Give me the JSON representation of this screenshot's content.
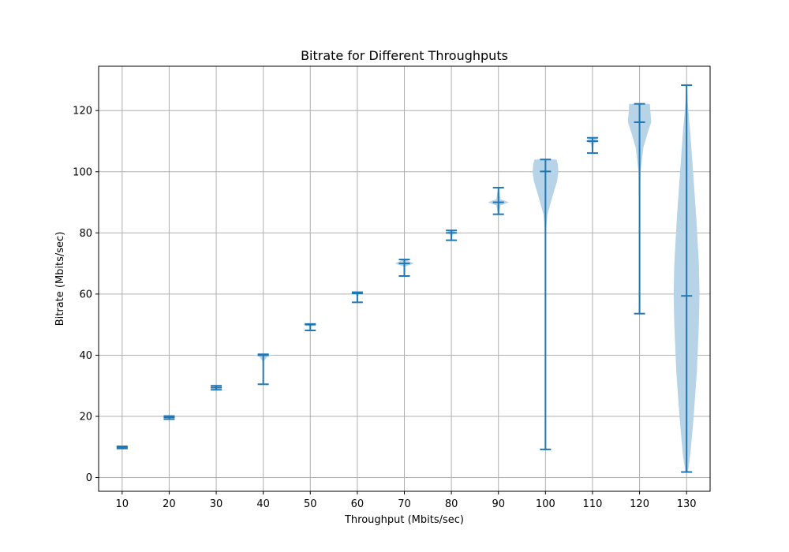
{
  "chart_data": {
    "type": "violin",
    "title": "Bitrate for Different Throughputs",
    "xlabel": "Throughput (Mbits/sec)",
    "ylabel": "Bitrate (Mbits/sec)",
    "categories": [
      "10",
      "20",
      "30",
      "40",
      "50",
      "60",
      "70",
      "80",
      "90",
      "100",
      "110",
      "120",
      "130"
    ],
    "yticks": [
      0,
      20,
      40,
      60,
      80,
      100,
      120
    ],
    "ylim": [
      -4.5,
      134.5
    ],
    "grid": true,
    "violin_color": "#b6d3e8",
    "stat_color": "#1f77b4",
    "violins": [
      {
        "category": "10",
        "min": 9.5,
        "median": 9.9,
        "max": 10.2,
        "width": 0.05,
        "profile": [
          [
            9.5,
            0.4
          ],
          [
            9.9,
            1.0
          ],
          [
            10.2,
            0.4
          ]
        ]
      },
      {
        "category": "20",
        "min": 19.1,
        "median": 19.7,
        "max": 20.1,
        "width": 0.06,
        "profile": [
          [
            19.1,
            0.4
          ],
          [
            19.7,
            1.0
          ],
          [
            20.1,
            0.4
          ]
        ]
      },
      {
        "category": "30",
        "min": 28.7,
        "median": 29.4,
        "max": 30.0,
        "width": 0.06,
        "profile": [
          [
            28.7,
            0.4
          ],
          [
            29.4,
            1.0
          ],
          [
            30.0,
            0.4
          ]
        ]
      },
      {
        "category": "40",
        "min": 30.5,
        "median": 40.0,
        "max": 40.3,
        "width": 0.45,
        "profile": [
          [
            30.5,
            0.01
          ],
          [
            38.0,
            0.04
          ],
          [
            39.6,
            0.4
          ],
          [
            40.0,
            1.0
          ],
          [
            40.3,
            0.2
          ]
        ]
      },
      {
        "category": "50",
        "min": 48.1,
        "median": 50.0,
        "max": 50.2,
        "width": 0.25,
        "profile": [
          [
            48.1,
            0.01
          ],
          [
            49.5,
            0.1
          ],
          [
            50.0,
            1.0
          ],
          [
            50.2,
            0.3
          ]
        ]
      },
      {
        "category": "60",
        "min": 57.3,
        "median": 60.2,
        "max": 60.6,
        "width": 0.15,
        "profile": [
          [
            57.3,
            0.02
          ],
          [
            59.5,
            0.2
          ],
          [
            60.2,
            1.0
          ],
          [
            60.6,
            0.5
          ]
        ]
      },
      {
        "category": "70",
        "min": 65.9,
        "median": 70.0,
        "max": 71.3,
        "width": 0.4,
        "profile": [
          [
            65.9,
            0.01
          ],
          [
            69.0,
            0.1
          ],
          [
            70.0,
            1.0
          ],
          [
            71.3,
            0.1
          ]
        ]
      },
      {
        "category": "80",
        "min": 77.6,
        "median": 80.0,
        "max": 80.8,
        "width": 0.2,
        "profile": [
          [
            77.6,
            0.03
          ],
          [
            79.5,
            0.3
          ],
          [
            80.0,
            1.0
          ],
          [
            80.8,
            0.4
          ]
        ]
      },
      {
        "category": "90",
        "min": 86.1,
        "median": 90.0,
        "max": 94.8,
        "width": 0.45,
        "profile": [
          [
            86.1,
            0.02
          ],
          [
            89.0,
            0.2
          ],
          [
            90.0,
            1.0
          ],
          [
            91.0,
            0.2
          ],
          [
            94.8,
            0.02
          ]
        ]
      },
      {
        "category": "100",
        "min": 9.2,
        "median": 100.1,
        "max": 104.0,
        "width": 0.55,
        "profile": [
          [
            9.2,
            0.005
          ],
          [
            60.0,
            0.01
          ],
          [
            80.0,
            0.03
          ],
          [
            86.0,
            0.15
          ],
          [
            92.0,
            0.55
          ],
          [
            97.0,
            0.9
          ],
          [
            100.0,
            1.0
          ],
          [
            102.5,
            0.95
          ],
          [
            104.0,
            0.85
          ]
        ]
      },
      {
        "category": "110",
        "min": 106.1,
        "median": 110.0,
        "max": 111.1,
        "width": 0.3,
        "profile": [
          [
            106.1,
            0.02
          ],
          [
            109.2,
            0.2
          ],
          [
            110.0,
            1.0
          ],
          [
            111.1,
            0.3
          ]
        ]
      },
      {
        "category": "120",
        "min": 53.6,
        "median": 116.2,
        "max": 122.2,
        "width": 0.55,
        "profile": [
          [
            53.6,
            0.005
          ],
          [
            90.0,
            0.02
          ],
          [
            100.0,
            0.08
          ],
          [
            108.0,
            0.3
          ],
          [
            113.0,
            0.65
          ],
          [
            116.2,
            0.9
          ],
          [
            119.0,
            0.85
          ],
          [
            122.2,
            0.8
          ]
        ]
      },
      {
        "category": "130",
        "min": 1.8,
        "median": 59.4,
        "max": 128.3,
        "width": 0.55,
        "profile": [
          [
            1.8,
            0.1
          ],
          [
            8.0,
            0.3
          ],
          [
            20.0,
            0.55
          ],
          [
            35.0,
            0.8
          ],
          [
            50.0,
            0.95
          ],
          [
            60.0,
            1.0
          ],
          [
            70.0,
            0.95
          ],
          [
            85.0,
            0.75
          ],
          [
            100.0,
            0.5
          ],
          [
            112.0,
            0.3
          ],
          [
            122.0,
            0.1
          ],
          [
            128.3,
            0.02
          ]
        ]
      }
    ]
  }
}
